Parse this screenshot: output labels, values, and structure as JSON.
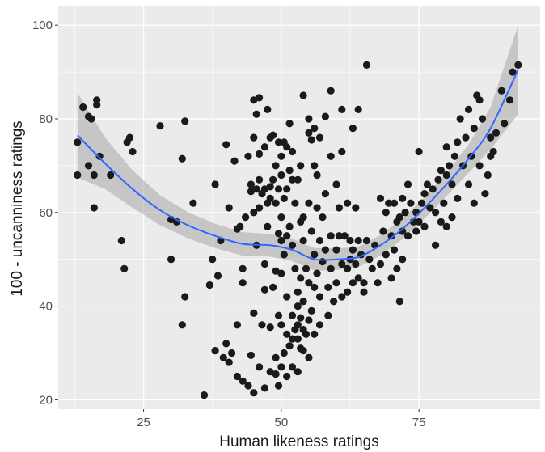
{
  "chart_data": {
    "type": "scatter",
    "title": "",
    "xlabel": "Human likeness ratings",
    "ylabel": "100 - uncanniness ratings",
    "xlim": [
      9.5,
      97
    ],
    "ylim": [
      18,
      104
    ],
    "x_ticks": [
      25,
      50,
      75
    ],
    "y_ticks": [
      20,
      40,
      60,
      80,
      100
    ],
    "x_tick_labels": [
      "25",
      "50",
      "75"
    ],
    "y_tick_labels": [
      "20",
      "40",
      "60",
      "80",
      "100"
    ],
    "grid": true,
    "legend": "none",
    "colors": {
      "panel": "#ebebeb",
      "grid_major": "#ffffff",
      "points": "#1a1a1a",
      "smooth_line": "#3366ff",
      "confidence_band": "#999999"
    },
    "series": [
      {
        "kind": "points",
        "points": [
          [
            13,
            75
          ],
          [
            13,
            68
          ],
          [
            14,
            82.5
          ],
          [
            15,
            80.5
          ],
          [
            15,
            70
          ],
          [
            15.5,
            80
          ],
          [
            16,
            61
          ],
          [
            16,
            68
          ],
          [
            16.5,
            84
          ],
          [
            17,
            72
          ],
          [
            16.5,
            83
          ],
          [
            19,
            68
          ],
          [
            21,
            54
          ],
          [
            21.5,
            48
          ],
          [
            22,
            75
          ],
          [
            22.5,
            76
          ],
          [
            23,
            73
          ],
          [
            28,
            78.5
          ],
          [
            30,
            58.5
          ],
          [
            30,
            50
          ],
          [
            31,
            58
          ],
          [
            32,
            71.5
          ],
          [
            32.5,
            79.5
          ],
          [
            32.5,
            42
          ],
          [
            32,
            36
          ],
          [
            34,
            62
          ],
          [
            36,
            21
          ],
          [
            37,
            44.5
          ],
          [
            37.5,
            50
          ],
          [
            38,
            66
          ],
          [
            38,
            30.5
          ],
          [
            38.5,
            46.5
          ],
          [
            39,
            54
          ],
          [
            39.5,
            29
          ],
          [
            40,
            32
          ],
          [
            40,
            74.5
          ],
          [
            40.5,
            61
          ],
          [
            40.5,
            28
          ],
          [
            41,
            30
          ],
          [
            41.5,
            71
          ],
          [
            42,
            56.5
          ],
          [
            42,
            36
          ],
          [
            42.5,
            57
          ],
          [
            42,
            25
          ],
          [
            43,
            24
          ],
          [
            43,
            45
          ],
          [
            43,
            48
          ],
          [
            43.5,
            59
          ],
          [
            44,
            72
          ],
          [
            44,
            23
          ],
          [
            44.5,
            66
          ],
          [
            44.5,
            64.5
          ],
          [
            44.5,
            29.5
          ],
          [
            45,
            84
          ],
          [
            45,
            38.5
          ],
          [
            45,
            60
          ],
          [
            45,
            76
          ],
          [
            45,
            21.5
          ],
          [
            45.5,
            81
          ],
          [
            45.5,
            65
          ],
          [
            45.5,
            53
          ],
          [
            46,
            84.5
          ],
          [
            46,
            67
          ],
          [
            46,
            72.5
          ],
          [
            46,
            61
          ],
          [
            46,
            27
          ],
          [
            46.5,
            64
          ],
          [
            46.5,
            36
          ],
          [
            47,
            65
          ],
          [
            47,
            74
          ],
          [
            47,
            22.5
          ],
          [
            47,
            49
          ],
          [
            47,
            43.5
          ],
          [
            47.5,
            82
          ],
          [
            47.5,
            57
          ],
          [
            47.5,
            62
          ],
          [
            48,
            76
          ],
          [
            48,
            65.5
          ],
          [
            48,
            63
          ],
          [
            48,
            35.5
          ],
          [
            48,
            26
          ],
          [
            48.5,
            76.5
          ],
          [
            48.5,
            67
          ],
          [
            48.5,
            44
          ],
          [
            49,
            70
          ],
          [
            49,
            62
          ],
          [
            49,
            25.5
          ],
          [
            49,
            29
          ],
          [
            49,
            47.5
          ],
          [
            49.5,
            75
          ],
          [
            49.5,
            65
          ],
          [
            49.5,
            55.5
          ],
          [
            49.5,
            38
          ],
          [
            49.5,
            23
          ],
          [
            50,
            72
          ],
          [
            50,
            68
          ],
          [
            50,
            59
          ],
          [
            50,
            54
          ],
          [
            50,
            36
          ],
          [
            50,
            27
          ],
          [
            50,
            47
          ],
          [
            50.5,
            75
          ],
          [
            50.5,
            63
          ],
          [
            50.5,
            51
          ],
          [
            50.5,
            30
          ],
          [
            51,
            74
          ],
          [
            51,
            65
          ],
          [
            51,
            55
          ],
          [
            51,
            42
          ],
          [
            51,
            34
          ],
          [
            51,
            25
          ],
          [
            51.5,
            69
          ],
          [
            51.5,
            79
          ],
          [
            51.5,
            57
          ],
          [
            51.5,
            31.5
          ],
          [
            52,
            67
          ],
          [
            52,
            73
          ],
          [
            52,
            53
          ],
          [
            52,
            38
          ],
          [
            52,
            33
          ],
          [
            52,
            27
          ],
          [
            52.5,
            62
          ],
          [
            52.5,
            48
          ],
          [
            52.5,
            35
          ],
          [
            53,
            67
          ],
          [
            53,
            43
          ],
          [
            53,
            40
          ],
          [
            53,
            36
          ],
          [
            53,
            33
          ],
          [
            53,
            26
          ],
          [
            53.5,
            70
          ],
          [
            53.5,
            58
          ],
          [
            53.5,
            46
          ],
          [
            53.5,
            37.5
          ],
          [
            53.5,
            31
          ],
          [
            54,
            85
          ],
          [
            54,
            59
          ],
          [
            54,
            54
          ],
          [
            54,
            41
          ],
          [
            54,
            35
          ],
          [
            54,
            30.5
          ],
          [
            54.5,
            48
          ],
          [
            54.5,
            34
          ],
          [
            55,
            80
          ],
          [
            55,
            77
          ],
          [
            55,
            62
          ],
          [
            55,
            45
          ],
          [
            55,
            37
          ],
          [
            55,
            29
          ],
          [
            55.5,
            75.5
          ],
          [
            55.5,
            56
          ],
          [
            55.5,
            39
          ],
          [
            56,
            78
          ],
          [
            56,
            70
          ],
          [
            56,
            51
          ],
          [
            56,
            44
          ],
          [
            56,
            34
          ],
          [
            56.5,
            68
          ],
          [
            56.5,
            61
          ],
          [
            56.5,
            47
          ],
          [
            57,
            76
          ],
          [
            57,
            54
          ],
          [
            57,
            42
          ],
          [
            57,
            36
          ],
          [
            57.5,
            59
          ],
          [
            57.5,
            49.5
          ],
          [
            58,
            80.5
          ],
          [
            58,
            64
          ],
          [
            58,
            52
          ],
          [
            58.5,
            44
          ],
          [
            58.5,
            38
          ],
          [
            59,
            86
          ],
          [
            59,
            72
          ],
          [
            59,
            55
          ],
          [
            59,
            48
          ],
          [
            59.5,
            41
          ],
          [
            60,
            66
          ],
          [
            60,
            52
          ],
          [
            60,
            45
          ],
          [
            60.5,
            61
          ],
          [
            60.5,
            55
          ],
          [
            61,
            82
          ],
          [
            61,
            73
          ],
          [
            61,
            49
          ],
          [
            61,
            42
          ],
          [
            61.5,
            55
          ],
          [
            62,
            62
          ],
          [
            62,
            48
          ],
          [
            62,
            43
          ],
          [
            62.5,
            50
          ],
          [
            62.5,
            54
          ],
          [
            63,
            78
          ],
          [
            63,
            52
          ],
          [
            63,
            45
          ],
          [
            63.5,
            61
          ],
          [
            63.5,
            49
          ],
          [
            64,
            82
          ],
          [
            64,
            54
          ],
          [
            64,
            46
          ],
          [
            64.5,
            51
          ],
          [
            65,
            45
          ],
          [
            65,
            43
          ],
          [
            65.5,
            91.5
          ],
          [
            65.5,
            54
          ],
          [
            66,
            50
          ],
          [
            66.5,
            48
          ],
          [
            67,
            53
          ],
          [
            67.5,
            45
          ],
          [
            68,
            63
          ],
          [
            68,
            49
          ],
          [
            68.5,
            56
          ],
          [
            69,
            60
          ],
          [
            69,
            51
          ],
          [
            69.5,
            62
          ],
          [
            70,
            55
          ],
          [
            70,
            46
          ],
          [
            70.5,
            62
          ],
          [
            70.5,
            52
          ],
          [
            71,
            58
          ],
          [
            71,
            48
          ],
          [
            71.5,
            59
          ],
          [
            71.5,
            41
          ],
          [
            72,
            63
          ],
          [
            72,
            56
          ],
          [
            72,
            50
          ],
          [
            72.5,
            60
          ],
          [
            73,
            66
          ],
          [
            73,
            55
          ],
          [
            73.5,
            62
          ],
          [
            74,
            58
          ],
          [
            74.5,
            60
          ],
          [
            74.5,
            56
          ],
          [
            75,
            73
          ],
          [
            75,
            58
          ],
          [
            75.5,
            62
          ],
          [
            76,
            64
          ],
          [
            76,
            57
          ],
          [
            76.5,
            66
          ],
          [
            77,
            61
          ],
          [
            77.5,
            65
          ],
          [
            78,
            60
          ],
          [
            78,
            53
          ],
          [
            78.5,
            67
          ],
          [
            79,
            69
          ],
          [
            79,
            58
          ],
          [
            79.5,
            62
          ],
          [
            80,
            68
          ],
          [
            80,
            74
          ],
          [
            80,
            57
          ],
          [
            80.5,
            70
          ],
          [
            81,
            66
          ],
          [
            81,
            59
          ],
          [
            81.5,
            72
          ],
          [
            82,
            75
          ],
          [
            82,
            63
          ],
          [
            82.5,
            80
          ],
          [
            83,
            70
          ],
          [
            83.5,
            76
          ],
          [
            84,
            66
          ],
          [
            84,
            82
          ],
          [
            84.5,
            72
          ],
          [
            85,
            78
          ],
          [
            85,
            62
          ],
          [
            85.5,
            85
          ],
          [
            86,
            84
          ],
          [
            86,
            70
          ],
          [
            86.5,
            80
          ],
          [
            87,
            64
          ],
          [
            87.5,
            68
          ],
          [
            88,
            76
          ],
          [
            88,
            72
          ],
          [
            88.5,
            73
          ],
          [
            89,
            77
          ],
          [
            90,
            86
          ],
          [
            90.5,
            79
          ],
          [
            91.5,
            84
          ],
          [
            92,
            90
          ],
          [
            93,
            91.5
          ]
        ]
      },
      {
        "kind": "loess",
        "x": [
          13,
          18,
          23,
          28,
          33,
          38,
          43,
          48,
          52,
          56,
          60,
          64,
          68,
          72,
          76,
          80,
          84,
          88,
          93
        ],
        "y": [
          76.5,
          70.5,
          65,
          60.5,
          57.3,
          55,
          53.3,
          53,
          52,
          50,
          50,
          50.5,
          53,
          56.5,
          61,
          66,
          71.5,
          78,
          90.5
        ],
        "band_halfwidth": [
          9,
          5.5,
          4,
          3.2,
          2.8,
          2.6,
          2.5,
          2.4,
          2.4,
          2.4,
          2.3,
          2.2,
          2.2,
          2.2,
          2.3,
          2.5,
          3,
          4.5,
          9.5
        ]
      }
    ]
  }
}
